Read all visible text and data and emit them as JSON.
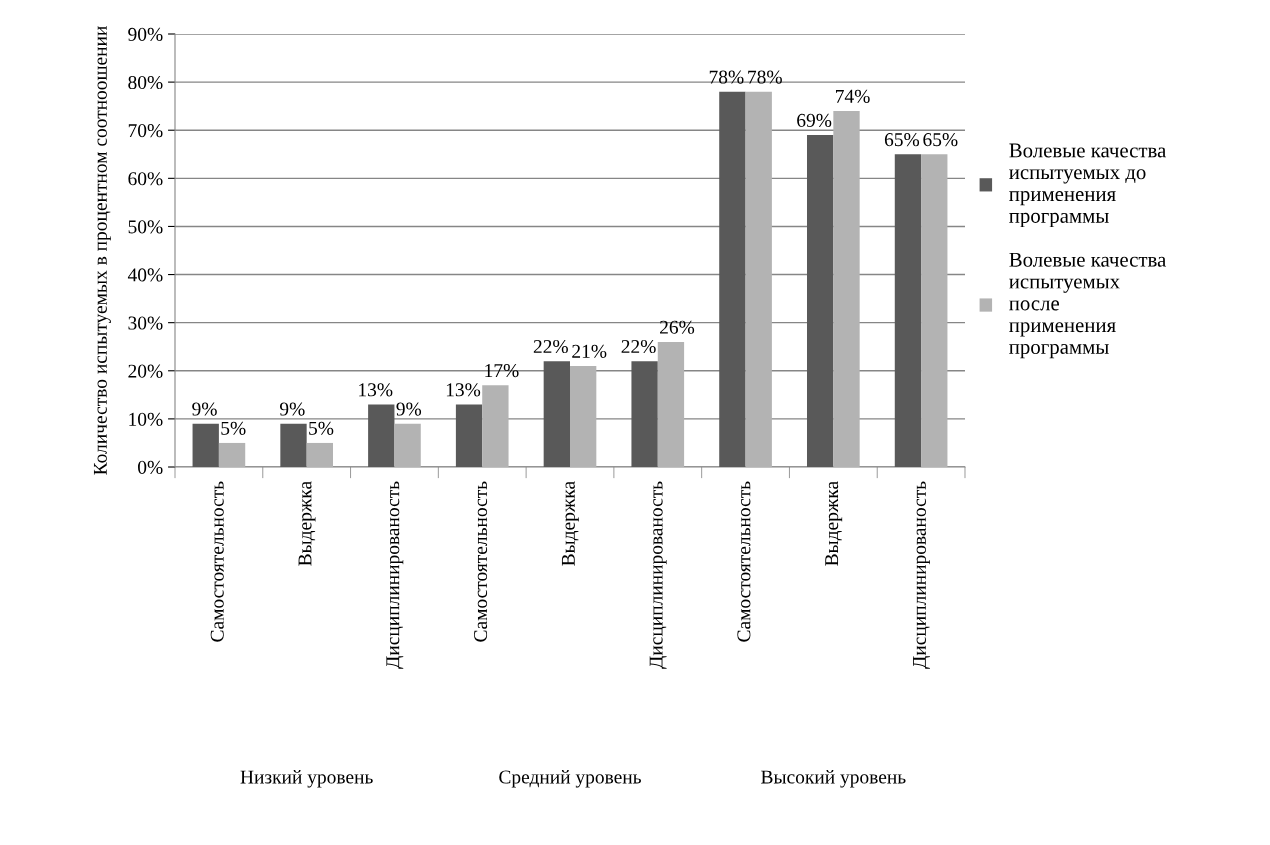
{
  "chart_data": {
    "type": "bar",
    "ylabel": "Количество испытуемых в процентном соотноошении",
    "categories": [
      "Самостоятельность",
      "Выдержка",
      "Дисциплинированость",
      "Самостоятельность",
      "Выдержка",
      "Дисциплинированость",
      "Самостоятельность",
      "Выдержка",
      "Дисциплинированость"
    ],
    "series": [
      {
        "name": "Волевые качества\nиспытуемых до\nприменения\nпрограммы",
        "color": "#595959",
        "values": [
          9,
          9,
          13,
          13,
          22,
          22,
          78,
          69,
          65
        ],
        "value_labels": [
          "9%",
          "9%",
          "13%",
          "13%",
          "22%",
          "22%",
          "78%",
          "69%",
          "65%"
        ]
      },
      {
        "name": "Волевые качества\nиспытуемых\nпосле\nприменения\nпрограммы",
        "color": "#b3b3b3",
        "values": [
          5,
          5,
          9,
          17,
          21,
          26,
          78,
          74,
          65
        ],
        "value_labels": [
          "5%",
          "5%",
          "9%",
          "17%",
          "21%",
          "26%",
          "78%",
          "74%",
          "65%"
        ]
      }
    ],
    "annotations": [
      "Низкий уровень",
      "Средний уровень",
      "Высокий уровень"
    ],
    "ylim": [
      0,
      90
    ],
    "yticks": [
      {
        "value": 0,
        "label": "0%"
      },
      {
        "value": 10,
        "label": "10%"
      },
      {
        "value": 20,
        "label": "20%"
      },
      {
        "value": 30,
        "label": "30%"
      },
      {
        "value": 40,
        "label": "40%"
      },
      {
        "value": 50,
        "label": "50%"
      },
      {
        "value": 60,
        "label": "60%"
      },
      {
        "value": 70,
        "label": "70%"
      },
      {
        "value": 80,
        "label": "80%"
      },
      {
        "value": 90,
        "label": "90%"
      }
    ],
    "grid": "y",
    "legend": "right"
  }
}
